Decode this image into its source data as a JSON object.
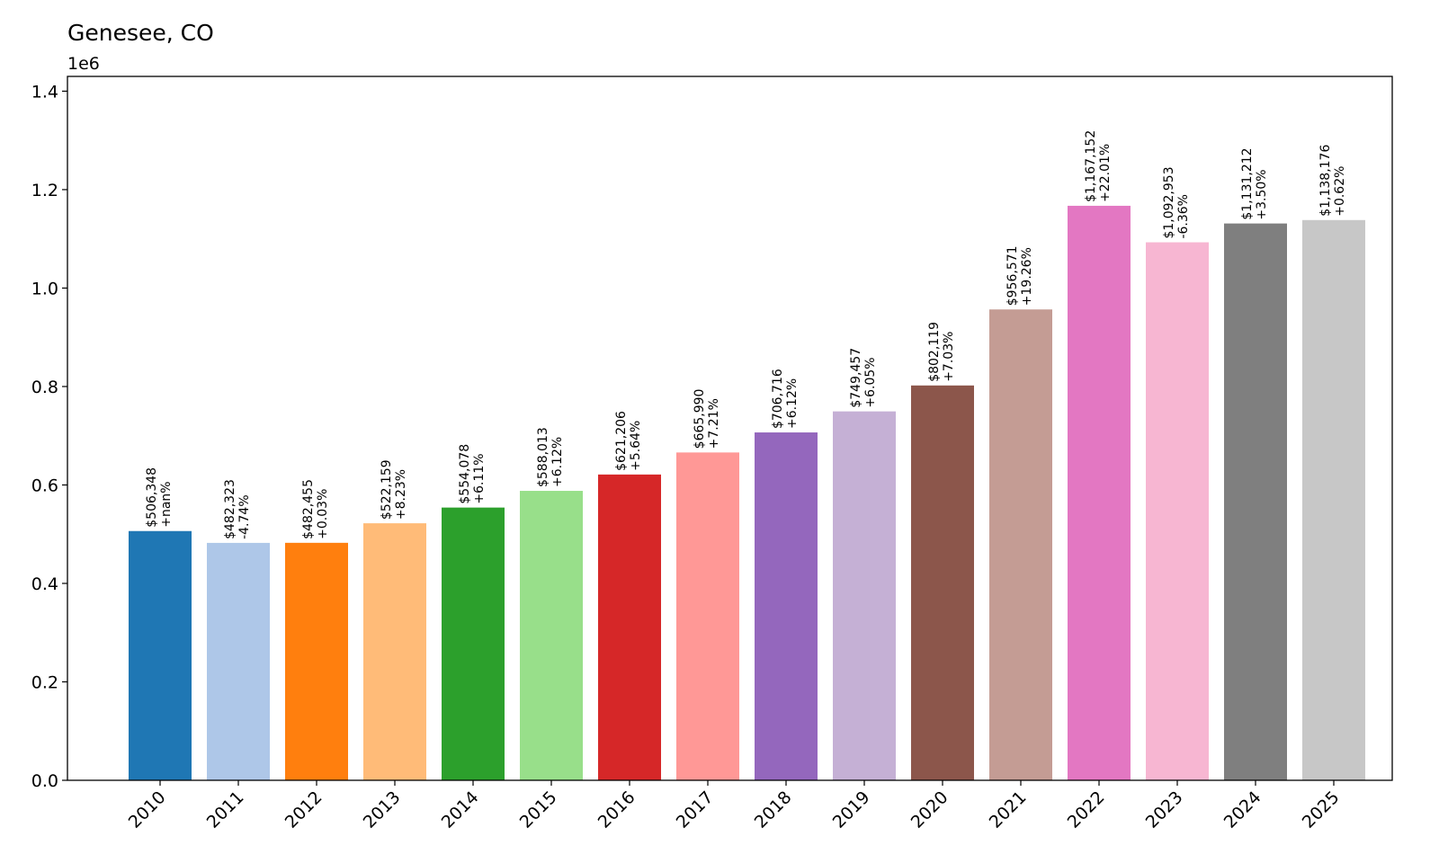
{
  "chart_data": {
    "type": "bar",
    "title": "Genesee, CO",
    "y_offset_label": "1e6",
    "xlabel": "",
    "ylabel": "",
    "ylim": [
      0,
      1.43
    ],
    "grid": false,
    "legend": "none",
    "categories": [
      "2010",
      "2011",
      "2012",
      "2013",
      "2014",
      "2015",
      "2016",
      "2017",
      "2018",
      "2019",
      "2020",
      "2021",
      "2022",
      "2023",
      "2024",
      "2025"
    ],
    "values": [
      506348,
      482323,
      482455,
      522159,
      554078,
      588013,
      621206,
      665990,
      706716,
      749457,
      802119,
      956571,
      1167152,
      1092953,
      1131212,
      1138176
    ],
    "value_labels": [
      "$506,348",
      "$482,323",
      "$482,455",
      "$522,159",
      "$554,078",
      "$588,013",
      "$621,206",
      "$665,990",
      "$706,716",
      "$749,457",
      "$802,119",
      "$956,571",
      "$1,167,152",
      "$1,092,953",
      "$1,131,212",
      "$1,138,176"
    ],
    "change_labels": [
      "+nan%",
      "-4.74%",
      "+0.03%",
      "+8.23%",
      "+6.11%",
      "+6.12%",
      "+5.64%",
      "+7.21%",
      "+6.12%",
      "+6.05%",
      "+7.03%",
      "+19.26%",
      "+22.01%",
      "-6.36%",
      "+3.50%",
      "+0.62%"
    ],
    "colors": [
      "#1f77b4",
      "#aec7e8",
      "#ff7f0e",
      "#ffbb78",
      "#2ca02c",
      "#98df8a",
      "#d62728",
      "#ff9896",
      "#9467bd",
      "#c5b0d5",
      "#8c564b",
      "#c49c94",
      "#e377c2",
      "#f7b6d2",
      "#7f7f7f",
      "#c7c7c7"
    ],
    "y_ticks": [
      0.0,
      0.2,
      0.4,
      0.6,
      0.8,
      1.0,
      1.2,
      1.4
    ],
    "y_tick_labels": [
      "0.0",
      "0.2",
      "0.4",
      "0.6",
      "0.8",
      "1.0",
      "1.2",
      "1.4"
    ]
  }
}
